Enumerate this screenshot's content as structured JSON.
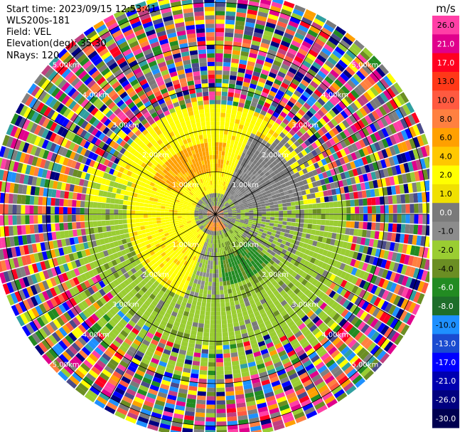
{
  "info": {
    "start_time": "Start time: 2023/09/15 12:53:41",
    "instrument": "WLS200s-181",
    "field": "Field: VEL",
    "elevation": "Elevation(deg): 35.30",
    "nrays": "NRays: 120"
  },
  "colorbar": {
    "unit": "m/s",
    "ticks": [
      "26.0",
      "21.0",
      "17.0",
      "13.0",
      "10.0",
      "8.0",
      "6.0",
      "4.0",
      "2.0",
      "1.0",
      "0.0",
      "-1.0",
      "-2.0",
      "-4.0",
      "-6.0",
      "-8.0",
      "-10.0",
      "-13.0",
      "-17.0",
      "-21.0",
      "-26.0",
      "-30.0"
    ],
    "colors": [
      "#ff3fa6",
      "#e0008c",
      "#ff0020",
      "#ff3818",
      "#ff5a40",
      "#ff8040",
      "#ffa000",
      "#ffc800",
      "#ffff00",
      "#f0e000",
      "#7a7a7a",
      "#8c8c8c",
      "#9acd32",
      "#6b8e23",
      "#228b22",
      "#1e6e2a",
      "#1e90ff",
      "#1a4bd0",
      "#0000ff",
      "#0000b0",
      "#000080",
      "#000050"
    ]
  },
  "rings": {
    "labels": [
      "1.00km",
      "2.00km",
      "3.00km",
      "4.00km",
      "5.00km"
    ]
  },
  "chart_data": {
    "type": "heatmap",
    "title": "",
    "projection": "polar PPI",
    "nrays": 120,
    "range_km": [
      0,
      5.3
    ],
    "gate_km": 0.1,
    "field": "VEL",
    "units": "m/s",
    "vlim": [
      -30,
      26
    ]
  }
}
